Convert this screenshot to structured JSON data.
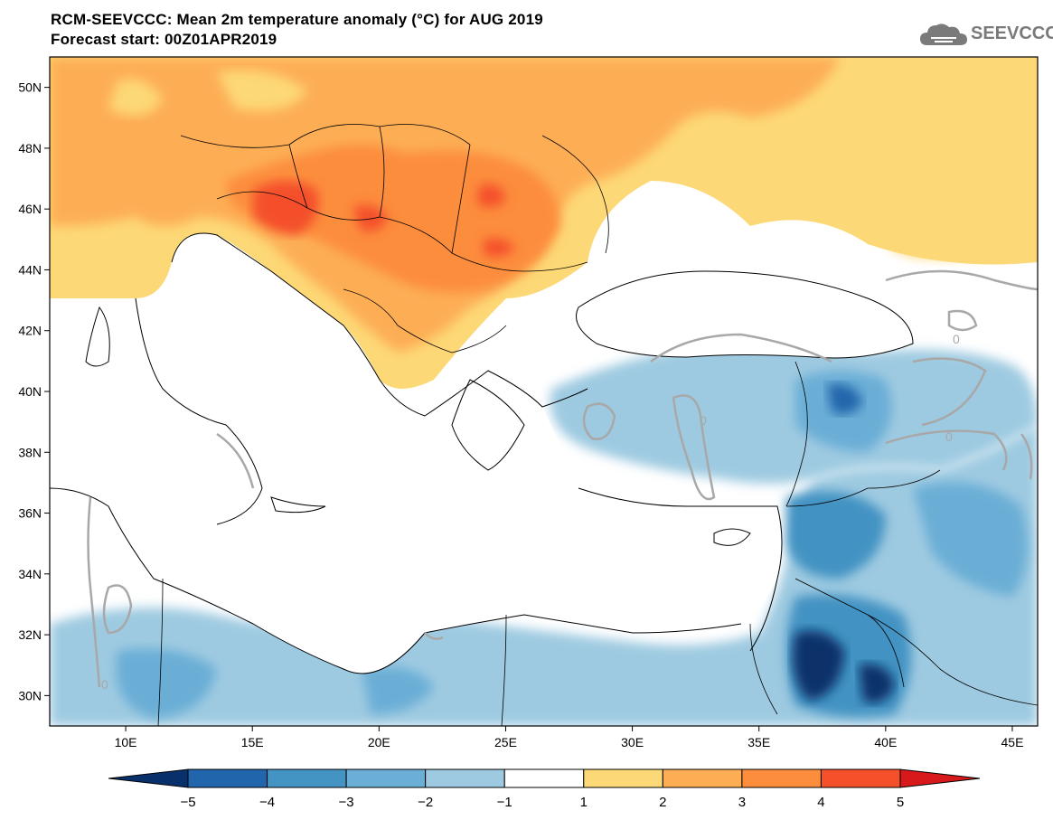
{
  "title_line1": "RCM-SEEVCCC: Mean 2m temperature anomaly (°C) for AUG 2019",
  "title_line2": "Forecast start: 00Z01APR2019",
  "logo": {
    "icon": "cloud-icon",
    "text": "SEEVCCC"
  },
  "map": {
    "projection": "lat-lon",
    "lon_range": [
      7,
      46
    ],
    "lat_range": [
      29,
      51
    ],
    "lat_ticks": [
      "50N",
      "48N",
      "46N",
      "44N",
      "42N",
      "40N",
      "38N",
      "36N",
      "34N",
      "32N",
      "30N"
    ],
    "lon_ticks": [
      "10E",
      "15E",
      "20E",
      "25E",
      "30E",
      "35E",
      "40E",
      "45E"
    ],
    "contour_label": "0"
  },
  "colorbar": {
    "labels": [
      "−5",
      "−4",
      "−3",
      "−2",
      "−1",
      "1",
      "2",
      "3",
      "4",
      "5"
    ],
    "colors": [
      "#08306b",
      "#2166ac",
      "#4393c3",
      "#6baed6",
      "#9ecae1",
      "#ffffff",
      "#fdd876",
      "#fdae55",
      "#fc8d3c",
      "#f4502a",
      "#d7191c"
    ]
  }
}
